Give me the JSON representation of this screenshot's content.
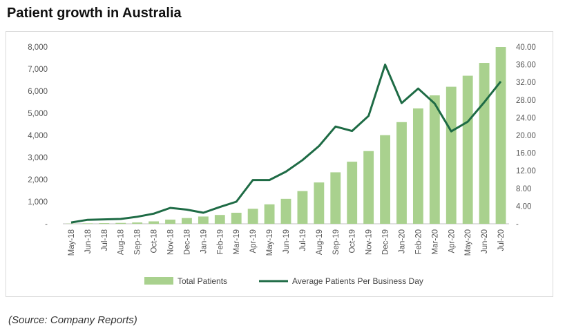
{
  "title": "Patient growth in Australia",
  "source": "(Source: Company Reports)",
  "chart_data": {
    "type": "bar+line",
    "categories": [
      "May-18",
      "Jun-18",
      "Jul-18",
      "Aug-18",
      "Sep-18",
      "Oct-18",
      "Nov-18",
      "Dec-18",
      "Jan-19",
      "Feb-19",
      "Mar-19",
      "Apr-19",
      "May-19",
      "Jun-19",
      "Jul-19",
      "Aug-19",
      "Sep-19",
      "Oct-19",
      "Nov-19",
      "Dec-19",
      "Jan-20",
      "Feb-20",
      "Mar-20",
      "Apr-20",
      "May-20",
      "Jun-20",
      "Jul-20"
    ],
    "series": [
      {
        "name": "Total Patients",
        "kind": "bar",
        "axis": "left",
        "values": [
          10,
          20,
          30,
          40,
          60,
          110,
          190,
          260,
          330,
          400,
          500,
          680,
          880,
          1130,
          1480,
          1870,
          2330,
          2810,
          3290,
          4010,
          4600,
          5220,
          5810,
          6200,
          6700,
          7280,
          8000
        ]
      },
      {
        "name": "Average Patients Per Business Day",
        "kind": "line",
        "axis": "right",
        "values": [
          0.3,
          0.9,
          1.0,
          1.1,
          1.6,
          2.3,
          3.6,
          3.2,
          2.5,
          3.8,
          5.0,
          9.9,
          9.9,
          11.8,
          14.4,
          17.6,
          22.0,
          21.0,
          24.4,
          36.0,
          27.3,
          30.6,
          27.2,
          20.9,
          23.1,
          27.5,
          32.2
        ]
      }
    ],
    "y_left": {
      "min": 0,
      "max": 8000,
      "ticks": [
        "-",
        "1,000",
        "2,000",
        "3,000",
        "4,000",
        "5,000",
        "6,000",
        "7,000",
        "8,000"
      ]
    },
    "y_right": {
      "min": 0,
      "max": 40,
      "ticks": [
        "-",
        "4.00",
        "8.00",
        "12.00",
        "16.00",
        "20.00",
        "24.00",
        "28.00",
        "32.00",
        "36.00",
        "40.00"
      ]
    },
    "legend": [
      "Total Patients",
      "Average Patients Per Business Day"
    ],
    "legend_position": "bottom",
    "colors": {
      "bar": "#a9d18e",
      "line": "#1e6b45",
      "axis_text": "#555555"
    }
  }
}
